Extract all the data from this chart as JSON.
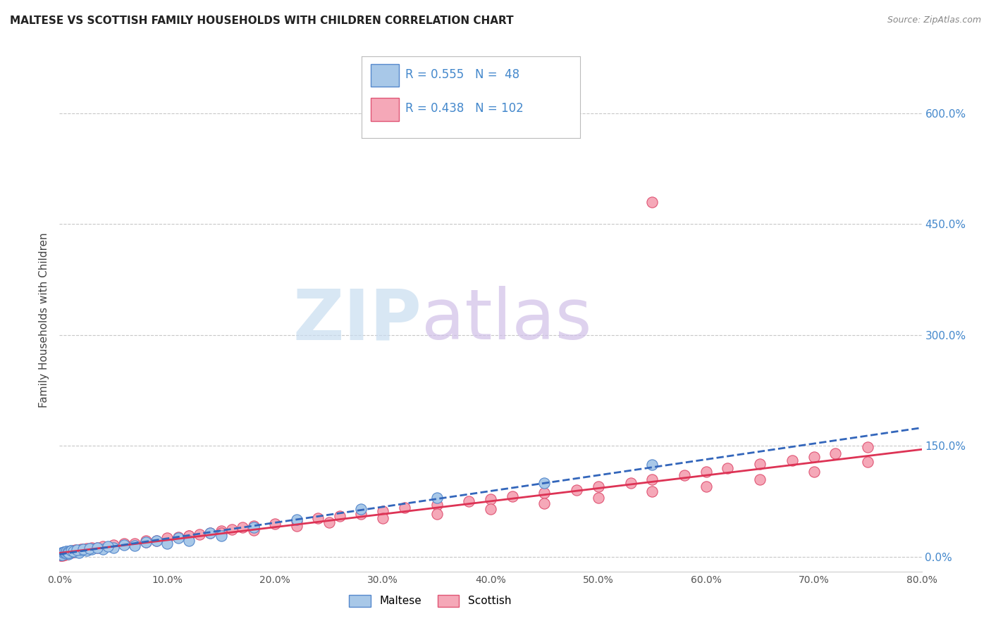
{
  "title": "MALTESE VS SCOTTISH FAMILY HOUSEHOLDS WITH CHILDREN CORRELATION CHART",
  "source": "Source: ZipAtlas.com",
  "ylabel": "Family Households with Children",
  "xlabel": "",
  "right_ytick_labels": [
    "0.0%",
    "150.0%",
    "300.0%",
    "450.0%",
    "600.0%"
  ],
  "right_ytick_values": [
    0,
    150,
    300,
    450,
    600
  ],
  "xlim": [
    0,
    80
  ],
  "ylim": [
    -20,
    660
  ],
  "xtick_values": [
    0,
    10,
    20,
    30,
    40,
    50,
    60,
    70,
    80
  ],
  "maltese_R": 0.555,
  "maltese_N": 48,
  "scottish_R": 0.438,
  "scottish_N": 102,
  "maltese_color": "#a8c8e8",
  "scottish_color": "#f5a8b8",
  "maltese_edge": "#5588cc",
  "scottish_edge": "#e05575",
  "trend_maltese_color": "#3366bb",
  "trend_scottish_color": "#dd3355",
  "grid_color": "#c8c8c8",
  "background_color": "#ffffff",
  "title_color": "#222222",
  "right_axis_color": "#4488cc",
  "legend_R_color": "#4488cc",
  "maltese_scatter_x": [
    0.1,
    0.2,
    0.3,
    0.4,
    0.5,
    0.6,
    0.7,
    0.8,
    0.9,
    1.0,
    1.2,
    1.5,
    1.8,
    2.0,
    2.5,
    3.0,
    4.0,
    5.0,
    7.0,
    10.0,
    12.0,
    15.0,
    0.15,
    0.25,
    0.35,
    0.45,
    0.55,
    0.65,
    0.75,
    0.85,
    1.1,
    1.3,
    1.6,
    2.2,
    2.8,
    3.5,
    4.5,
    6.0,
    8.0,
    9.0,
    11.0,
    14.0,
    18.0,
    22.0,
    28.0,
    35.0,
    45.0,
    55.0
  ],
  "maltese_scatter_y": [
    3,
    5,
    4,
    6,
    5,
    7,
    6,
    4,
    5,
    8,
    7,
    6,
    5,
    9,
    8,
    10,
    10,
    12,
    15,
    18,
    22,
    28,
    4,
    3,
    5,
    6,
    5,
    7,
    6,
    5,
    8,
    7,
    9,
    10,
    11,
    12,
    14,
    16,
    20,
    22,
    25,
    32,
    40,
    50,
    65,
    80,
    100,
    125
  ],
  "scottish_scatter_x": [
    0.1,
    0.15,
    0.2,
    0.25,
    0.3,
    0.35,
    0.4,
    0.45,
    0.5,
    0.55,
    0.6,
    0.65,
    0.7,
    0.75,
    0.8,
    0.9,
    1.0,
    1.1,
    1.2,
    1.3,
    1.4,
    1.5,
    1.6,
    1.8,
    2.0,
    2.2,
    2.5,
    3.0,
    3.5,
    4.0,
    5.0,
    6.0,
    7.0,
    8.0,
    9.0,
    10.0,
    11.0,
    12.0,
    13.0,
    14.0,
    15.0,
    16.0,
    17.0,
    18.0,
    20.0,
    22.0,
    24.0,
    26.0,
    28.0,
    30.0,
    32.0,
    35.0,
    38.0,
    40.0,
    42.0,
    45.0,
    48.0,
    50.0,
    53.0,
    55.0,
    58.0,
    60.0,
    62.0,
    65.0,
    68.0,
    70.0,
    72.0,
    75.0,
    0.2,
    0.3,
    0.4,
    0.5,
    0.6,
    0.7,
    0.8,
    1.0,
    1.2,
    1.5,
    2.0,
    2.5,
    3.0,
    4.0,
    5.0,
    6.0,
    8.0,
    10.0,
    12.0,
    15.0,
    18.0,
    22.0,
    25.0,
    30.0,
    35.0,
    40.0,
    45.0,
    50.0,
    55.0,
    60.0,
    65.0,
    70.0,
    75.0,
    55.0
  ],
  "scottish_scatter_y": [
    2,
    3,
    2,
    3,
    4,
    3,
    4,
    3,
    5,
    4,
    5,
    4,
    5,
    4,
    6,
    5,
    6,
    5,
    7,
    6,
    7,
    8,
    7,
    8,
    9,
    10,
    10,
    11,
    12,
    13,
    15,
    17,
    18,
    20,
    22,
    24,
    26,
    28,
    30,
    32,
    35,
    37,
    40,
    42,
    45,
    48,
    52,
    55,
    58,
    62,
    66,
    70,
    75,
    78,
    82,
    86,
    90,
    95,
    100,
    105,
    110,
    115,
    120,
    126,
    130,
    135,
    140,
    148,
    3,
    2,
    4,
    3,
    5,
    4,
    5,
    7,
    8,
    9,
    10,
    11,
    12,
    14,
    16,
    18,
    22,
    25,
    28,
    32,
    36,
    42,
    46,
    52,
    58,
    65,
    72,
    80,
    88,
    95,
    105,
    115,
    128,
    480
  ]
}
